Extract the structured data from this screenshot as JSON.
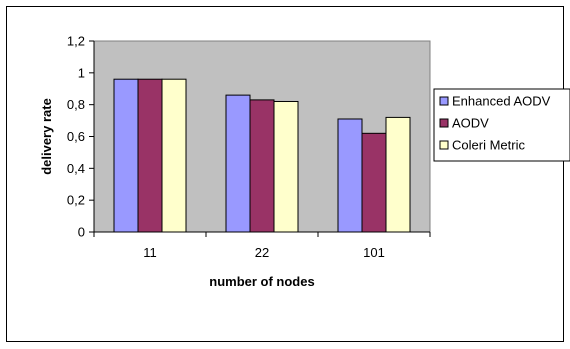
{
  "chart_data": {
    "type": "bar",
    "categories": [
      "11",
      "22",
      "101"
    ],
    "series": [
      {
        "name": "Enhanced AODV",
        "values": [
          0.96,
          0.86,
          0.71
        ],
        "color": "#9999ff"
      },
      {
        "name": "AODV",
        "values": [
          0.96,
          0.83,
          0.62
        ],
        "color": "#993366"
      },
      {
        "name": "Coleri Metric",
        "values": [
          0.96,
          0.82,
          0.72
        ],
        "color": "#ffffcc"
      }
    ],
    "xlabel": "number of nodes",
    "ylabel": "delivery rate",
    "ylim": [
      0,
      1.2
    ],
    "yticks": [
      "0",
      "0,2",
      "0,4",
      "0,6",
      "0,8",
      "1",
      "1,2"
    ],
    "plot_background": "#c0c0c0",
    "grid": false,
    "legend_position": "right"
  }
}
